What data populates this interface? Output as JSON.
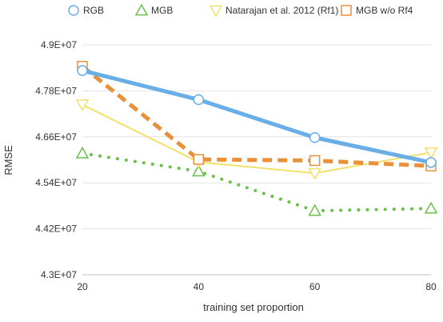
{
  "chart_data": {
    "type": "line",
    "xlabel": "training set proportion",
    "ylabel": "RMSE",
    "x": [
      20,
      40,
      60,
      80
    ],
    "xticks": [
      "20",
      "40",
      "60",
      "80"
    ],
    "ylim": [
      43000000,
      49000000
    ],
    "yticks": [
      43000000,
      44200000,
      45400000,
      46600000,
      47800000,
      49000000
    ],
    "ytick_labels": [
      "4.3E+07",
      "4.42E+07",
      "4.54E+07",
      "4.66E+07",
      "4.78E+07",
      "4.9E+07"
    ],
    "grid": "horizontal",
    "legend_position": "top",
    "series": [
      {
        "name": "RGB",
        "values": [
          48330000,
          47570000,
          46580000,
          45930000
        ],
        "color": "#6aaee8",
        "line": "solid-thick",
        "marker": "circle"
      },
      {
        "name": "MGB",
        "values": [
          46170000,
          45700000,
          44670000,
          44730000
        ],
        "color": "#6cc04a",
        "line": "dotted",
        "marker": "triangle-up"
      },
      {
        "name": "Natarajan et al. 2012 (Rf1)",
        "values": [
          47440000,
          45940000,
          45650000,
          46190000
        ],
        "color": "#f2e06a",
        "line": "solid-thin",
        "marker": "triangle-down"
      },
      {
        "name": "MGB w/o Rf4",
        "values": [
          48440000,
          46010000,
          45980000,
          45840000
        ],
        "color": "#e8913a",
        "line": "dashed",
        "marker": "square"
      }
    ]
  }
}
